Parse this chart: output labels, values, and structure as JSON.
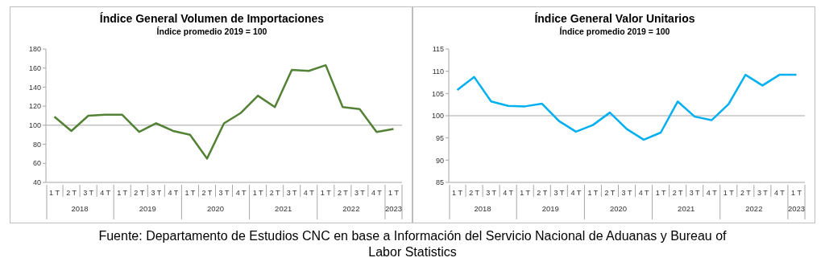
{
  "chart_data": [
    {
      "type": "line",
      "title": "Índice General Volumen de Importaciones",
      "subtitle": "Índice promedio 2019 = 100",
      "categories": [
        "1 T",
        "2 T",
        "3 T",
        "4 T",
        "1 T",
        "2 T",
        "3 T",
        "4 T",
        "1 T",
        "2 T",
        "3 T",
        "4 T",
        "1 T",
        "2 T",
        "3 T",
        "4 T",
        "1 T",
        "2 T",
        "3 T",
        "4 T",
        "1 T"
      ],
      "series": [
        {
          "color": "#538135",
          "values": [
            109,
            94,
            110,
            111,
            111,
            93,
            102,
            94,
            90,
            65,
            102,
            113,
            131,
            119,
            158,
            157,
            163,
            119,
            117,
            93,
            96
          ]
        }
      ],
      "ylim": [
        40,
        180
      ],
      "yticks": [
        40,
        60,
        80,
        100,
        120,
        140,
        160,
        180
      ],
      "grid": false,
      "legend": false,
      "marker": "none",
      "line_style": "solid",
      "ref_lines": [
        {
          "axis": "y",
          "value": 100,
          "color": "#a6a6a6"
        }
      ],
      "annotations": [
        "2018",
        "2019",
        "2020",
        "2021",
        "2022",
        "2023"
      ]
    },
    {
      "type": "line",
      "title": "Índice General Valor Unitarios",
      "subtitle": "Índice promedio 2019 = 100",
      "categories": [
        "1 T",
        "2 T",
        "3 T",
        "4 T",
        "1 T",
        "2 T",
        "3 T",
        "4 T",
        "1 T",
        "2 T",
        "3 T",
        "4 T",
        "1 T",
        "2 T",
        "3 T",
        "4 T",
        "1 T",
        "2 T",
        "3 T",
        "4 T",
        "1 T"
      ],
      "series": [
        {
          "color": "#00b0f0",
          "values": [
            105.8,
            108.7,
            103.2,
            102.2,
            102.1,
            102.7,
            98.8,
            96.4,
            97.9,
            100.7,
            97,
            94.6,
            96.2,
            103.2,
            99.8,
            99,
            102.6,
            109.2,
            106.8,
            109.2,
            109.2
          ]
        }
      ],
      "ylim": [
        85,
        115
      ],
      "yticks": [
        85,
        90,
        95,
        100,
        105,
        110,
        115
      ],
      "grid": false,
      "legend": false,
      "marker": "none",
      "line_style": "solid",
      "ref_lines": [
        {
          "axis": "y",
          "value": 100,
          "color": "#a6a6a6"
        }
      ],
      "annotations": [
        "2018",
        "2019",
        "2020",
        "2021",
        "2022",
        "2023",
        "Fuente: Departamento de Estudios CNC en base a Información del Servicio Nacional de Aduanas y Bureau of Labor Statistics"
      ]
    }
  ]
}
